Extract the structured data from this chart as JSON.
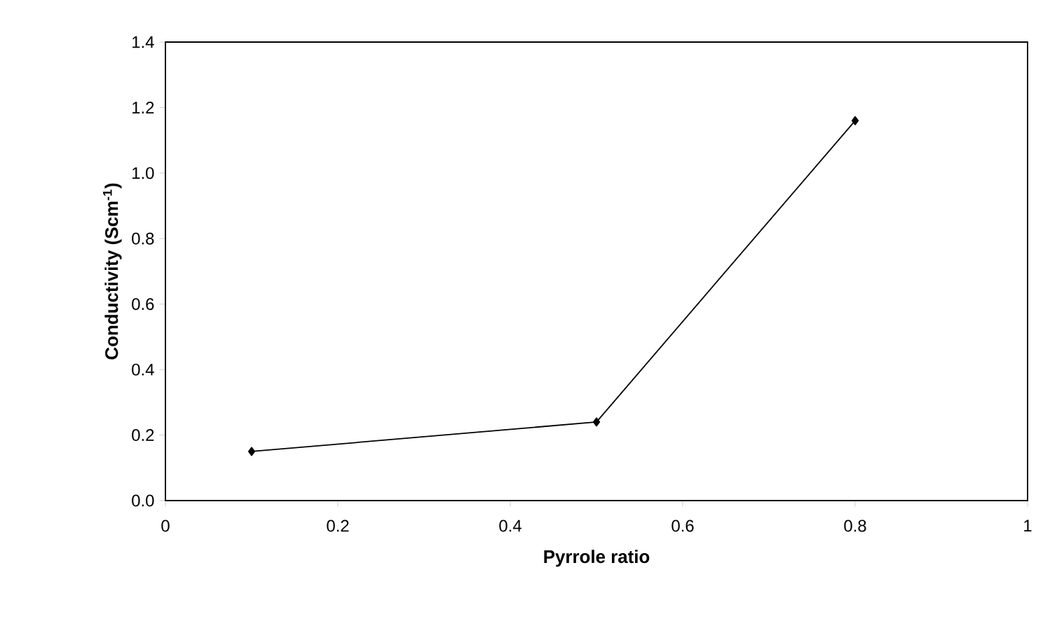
{
  "chart_data": {
    "type": "line",
    "xlabel": "Pyrrole ratio",
    "ylabel": "Conductivity (Scm$^{-1}$)",
    "x": [
      0.1,
      0.5,
      0.8
    ],
    "series": [
      {
        "color": "#000000",
        "values": [
          0.15,
          0.24,
          1.16
        ]
      }
    ],
    "xlim": [
      0,
      1
    ],
    "xticks": [
      0,
      0.2,
      0.4,
      0.6,
      0.8,
      1
    ],
    "ylim": [
      0,
      1.4
    ],
    "yticks": [
      {
        "value": 0,
        "label": "0.0"
      },
      0.2,
      0.4,
      0.6,
      0.8,
      {
        "value": 1,
        "label": "1.0"
      },
      1.2,
      1.4
    ],
    "marker": "diamond",
    "line_style": "solid"
  }
}
